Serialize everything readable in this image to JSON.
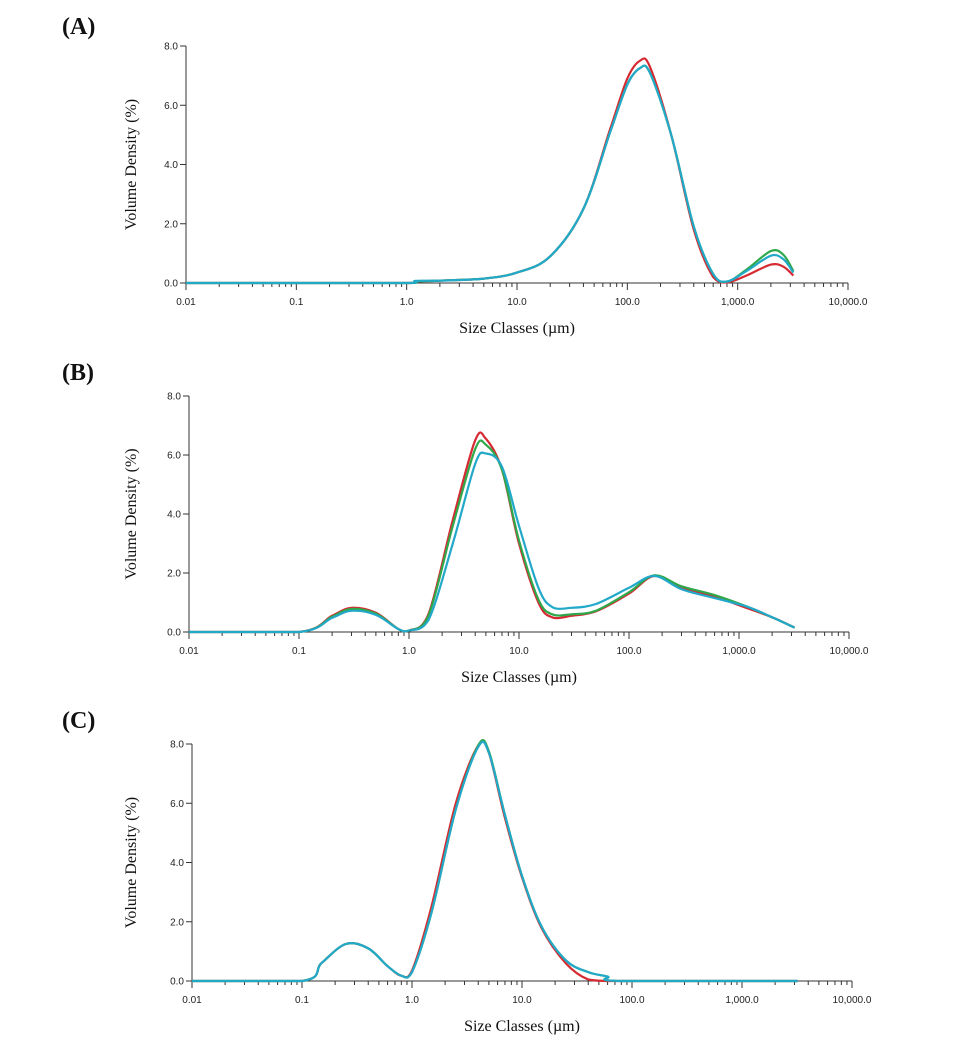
{
  "panels": [
    {
      "label": "(A)"
    },
    {
      "label": "(B)"
    },
    {
      "label": "(C)"
    }
  ],
  "series_colors": [
    "#d62a33",
    "#2ea84a",
    "#22a8c8"
  ],
  "chart_data": [
    {
      "type": "line",
      "xscale": "log",
      "xlim": [
        0.01,
        10000
      ],
      "ylim": [
        0,
        8
      ],
      "xlabel": "Size Classes (µm)",
      "ylabel": "Volume Density (%)",
      "xticks": [
        "0.01",
        "0.1",
        "1.0",
        "10.0",
        "100.0",
        "1,000.0",
        "10,000.0"
      ],
      "yticks": [
        "0.0",
        "2.0",
        "4.0",
        "6.0",
        "8.0"
      ],
      "grid": false,
      "series": [
        {
          "color": "#d62a33",
          "x": [
            0.01,
            0.1,
            1.0,
            1.2,
            2.0,
            5.0,
            10.0,
            20.0,
            40.0,
            70.0,
            100.0,
            130.0,
            160.0,
            250.0,
            400.0,
            600.0,
            800.0,
            1200.0,
            2000.0,
            2600.0,
            3200.0
          ],
          "y": [
            0,
            0,
            0,
            0.05,
            0.08,
            0.15,
            0.35,
            0.9,
            2.5,
            5.2,
            6.9,
            7.5,
            7.3,
            5.0,
            1.8,
            0.2,
            0.02,
            0.25,
            0.62,
            0.55,
            0.25
          ]
        },
        {
          "color": "#2ea84a",
          "x": [
            0.01,
            0.1,
            1.0,
            1.2,
            2.0,
            5.0,
            10.0,
            20.0,
            40.0,
            70.0,
            100.0,
            130.0,
            160.0,
            250.0,
            400.0,
            600.0,
            800.0,
            1200.0,
            2000.0,
            2600.0,
            3200.0
          ],
          "y": [
            0,
            0,
            0,
            0.05,
            0.08,
            0.15,
            0.35,
            0.9,
            2.5,
            5.1,
            6.7,
            7.25,
            7.1,
            5.0,
            1.9,
            0.3,
            0.05,
            0.45,
            1.08,
            0.95,
            0.4
          ]
        },
        {
          "color": "#22a8c8",
          "x": [
            0.01,
            0.1,
            1.0,
            1.2,
            2.0,
            5.0,
            10.0,
            20.0,
            40.0,
            70.0,
            100.0,
            130.0,
            160.0,
            250.0,
            400.0,
            600.0,
            800.0,
            1200.0,
            2000.0,
            2600.0,
            3200.0
          ],
          "y": [
            0,
            0,
            0,
            0.07,
            0.08,
            0.15,
            0.35,
            0.9,
            2.5,
            5.1,
            6.7,
            7.25,
            7.1,
            5.0,
            1.9,
            0.3,
            0.05,
            0.4,
            0.92,
            0.8,
            0.35
          ]
        }
      ]
    },
    {
      "type": "line",
      "xscale": "log",
      "xlim": [
        0.01,
        10000
      ],
      "ylim": [
        0,
        8
      ],
      "xlabel": "Size Classes (µm)",
      "ylabel": "Volume Density (%)",
      "xticks": [
        "0.01",
        "0.1",
        "1.0",
        "10.0",
        "100.0",
        "1,000.0",
        "10,000.0"
      ],
      "yticks": [
        "0.0",
        "2.0",
        "4.0",
        "6.0",
        "8.0"
      ],
      "grid": false,
      "series": [
        {
          "color": "#d62a33",
          "x": [
            0.01,
            0.1,
            0.2,
            0.3,
            0.5,
            0.8,
            1.0,
            1.5,
            2.5,
            4.0,
            5.0,
            7.0,
            10.0,
            15.0,
            20.0,
            30.0,
            50.0,
            100.0,
            170.0,
            300.0,
            600.0,
            1200.0,
            2000.0,
            3200.0
          ],
          "y": [
            0,
            0,
            0.55,
            0.82,
            0.65,
            0.1,
            0.05,
            0.6,
            3.8,
            6.5,
            6.55,
            5.5,
            3.0,
            1.0,
            0.5,
            0.55,
            0.7,
            1.3,
            1.9,
            1.5,
            1.2,
            0.8,
            0.5,
            0.15
          ]
        },
        {
          "color": "#2ea84a",
          "x": [
            0.01,
            0.1,
            0.2,
            0.3,
            0.5,
            0.8,
            1.0,
            1.5,
            2.5,
            4.0,
            5.0,
            7.0,
            10.0,
            15.0,
            20.0,
            30.0,
            50.0,
            100.0,
            170.0,
            300.0,
            600.0,
            1200.0,
            2000.0,
            3200.0
          ],
          "y": [
            0,
            0,
            0.52,
            0.78,
            0.62,
            0.1,
            0.05,
            0.55,
            3.6,
            6.2,
            6.35,
            5.5,
            3.1,
            1.1,
            0.6,
            0.6,
            0.72,
            1.35,
            1.92,
            1.55,
            1.25,
            0.85,
            0.5,
            0.15
          ]
        },
        {
          "color": "#22a8c8",
          "x": [
            0.01,
            0.1,
            0.2,
            0.3,
            0.5,
            0.8,
            1.0,
            1.5,
            2.5,
            4.0,
            5.0,
            7.0,
            10.0,
            15.0,
            20.0,
            30.0,
            50.0,
            100.0,
            170.0,
            300.0,
            600.0,
            1200.0,
            2000.0,
            3200.0
          ],
          "y": [
            0,
            0,
            0.48,
            0.72,
            0.58,
            0.1,
            0.05,
            0.4,
            3.0,
            5.7,
            6.05,
            5.6,
            3.6,
            1.5,
            0.85,
            0.82,
            0.95,
            1.5,
            1.9,
            1.45,
            1.15,
            0.85,
            0.5,
            0.15
          ]
        }
      ]
    },
    {
      "type": "line",
      "xscale": "log",
      "xlim": [
        0.01,
        10000
      ],
      "ylim": [
        0,
        8
      ],
      "xlabel": "Size Classes (µm)",
      "ylabel": "Volume Density (%)",
      "xticks": [
        "0.01",
        "0.1",
        "1.0",
        "10.0",
        "100.0",
        "1,000.0",
        "10,000.0"
      ],
      "yticks": [
        "0.0",
        "2.0",
        "4.0",
        "6.0",
        "8.0"
      ],
      "grid": false,
      "series": [
        {
          "color": "#d62a33",
          "x": [
            0.01,
            0.1,
            0.15,
            0.25,
            0.4,
            0.6,
            0.8,
            1.0,
            1.5,
            2.5,
            4.0,
            5.0,
            7.0,
            10.0,
            15.0,
            25.0,
            40.0,
            60.0,
            80.0,
            3200.0
          ],
          "y": [
            0,
            0,
            0.6,
            1.25,
            1.1,
            0.5,
            0.18,
            0.35,
            2.5,
            6.0,
            7.95,
            7.7,
            5.5,
            3.5,
            1.8,
            0.6,
            0.05,
            0,
            0,
            0
          ]
        },
        {
          "color": "#2ea84a",
          "x": [
            0.01,
            0.1,
            0.15,
            0.25,
            0.4,
            0.6,
            0.8,
            1.0,
            1.5,
            2.5,
            4.0,
            5.0,
            7.0,
            10.0,
            15.0,
            25.0,
            40.0,
            60.0,
            80.0,
            3200.0
          ],
          "y": [
            0,
            0,
            0.6,
            1.25,
            1.1,
            0.5,
            0.18,
            0.3,
            2.3,
            5.8,
            7.95,
            7.75,
            5.6,
            3.55,
            1.85,
            0.7,
            0.3,
            0.15,
            0,
            0
          ]
        },
        {
          "color": "#22a8c8",
          "x": [
            0.01,
            0.1,
            0.15,
            0.25,
            0.4,
            0.6,
            0.8,
            1.0,
            1.5,
            2.5,
            4.0,
            5.0,
            7.0,
            10.0,
            15.0,
            25.0,
            40.0,
            60.0,
            80.0,
            3200.0
          ],
          "y": [
            0,
            0,
            0.6,
            1.25,
            1.1,
            0.5,
            0.18,
            0.3,
            2.3,
            5.8,
            7.9,
            7.7,
            5.6,
            3.55,
            1.85,
            0.7,
            0.3,
            0.15,
            0,
            0
          ]
        }
      ]
    }
  ]
}
